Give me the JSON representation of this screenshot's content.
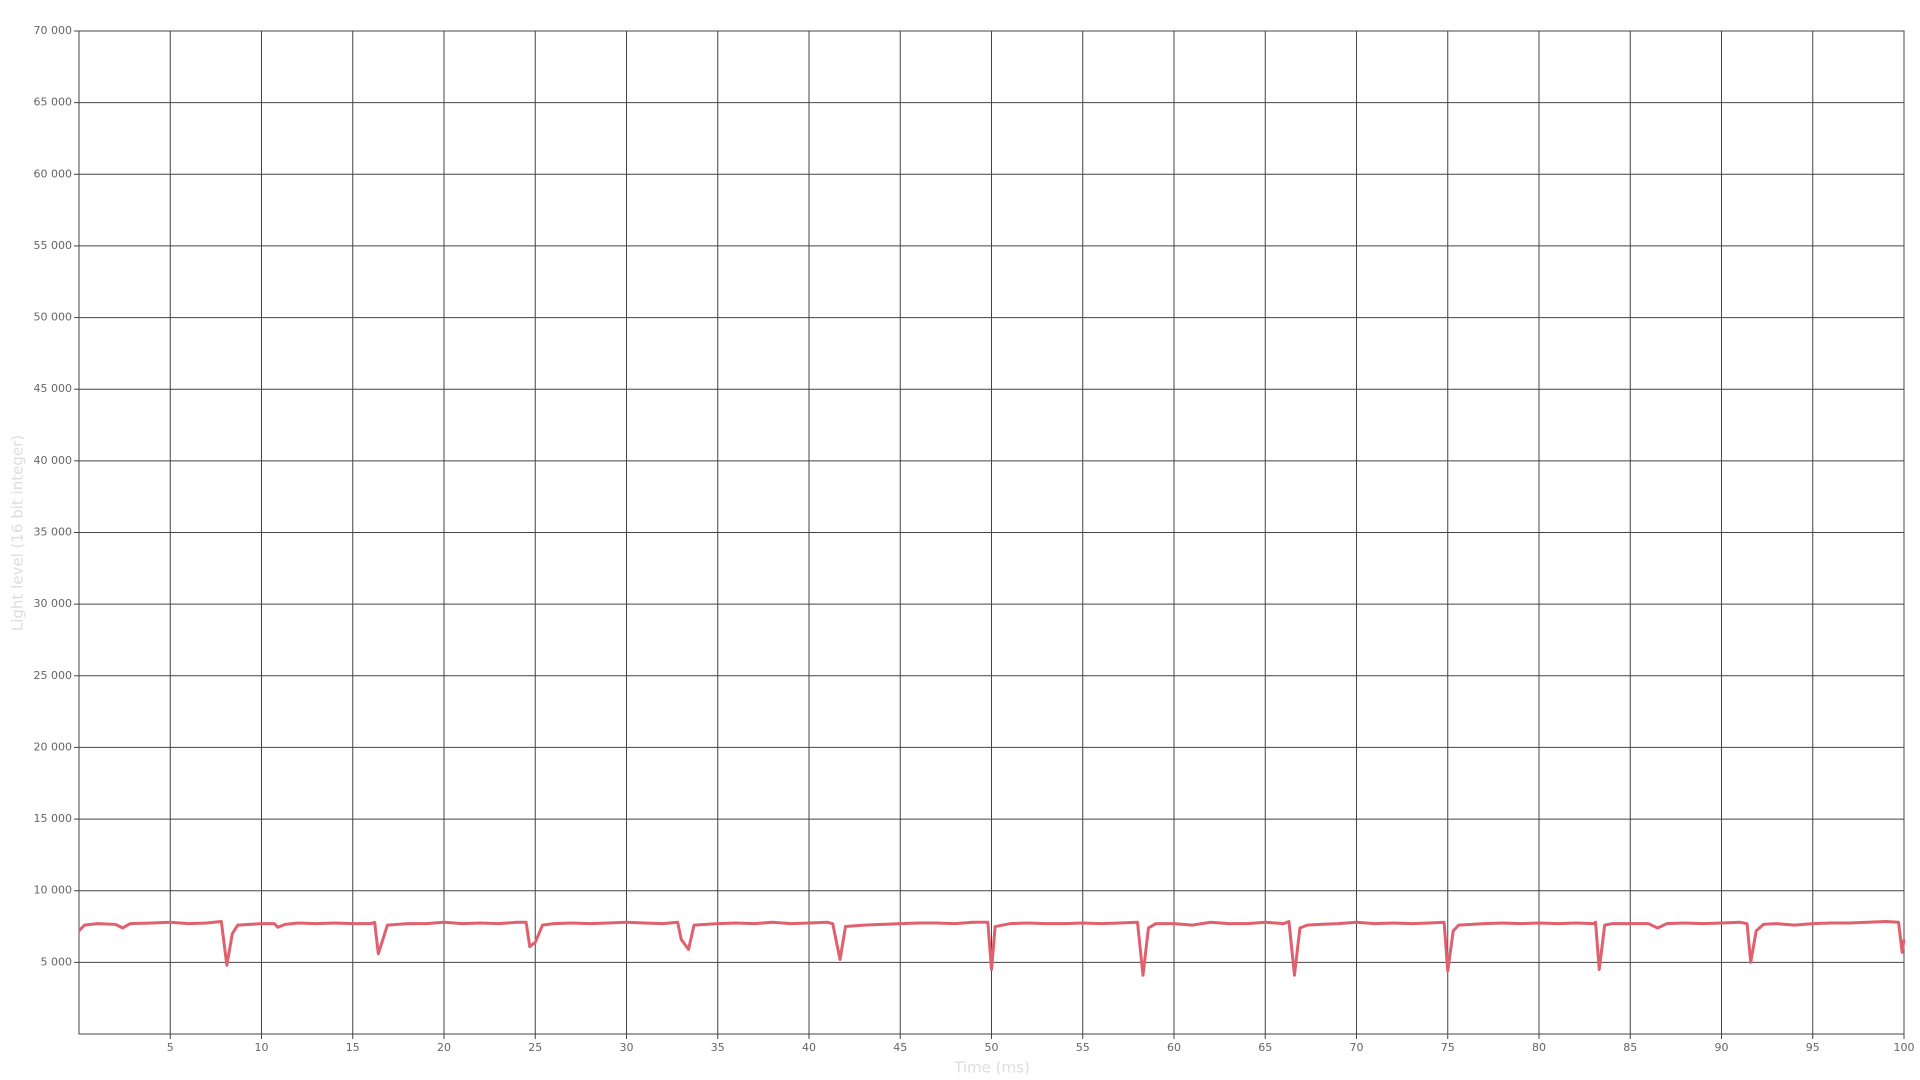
{
  "chart_data": {
    "type": "line",
    "xlabel": "Time (ms)",
    "ylabel": "Light level (16 bit integer)",
    "color": "#e0606e",
    "grid": true,
    "xlim": [
      0,
      100
    ],
    "ylim": [
      0,
      70000
    ],
    "xticks": [
      5,
      10,
      15,
      20,
      25,
      30,
      35,
      40,
      45,
      50,
      55,
      60,
      65,
      70,
      75,
      80,
      85,
      90,
      95,
      100
    ],
    "yticks": [
      {
        "value": 5000,
        "label": "5 000"
      },
      {
        "value": 10000,
        "label": "10 000"
      },
      {
        "value": 15000,
        "label": "15 000"
      },
      {
        "value": 20000,
        "label": "20 000"
      },
      {
        "value": 25000,
        "label": "25 000"
      },
      {
        "value": 30000,
        "label": "30 000"
      },
      {
        "value": 35000,
        "label": "35 000"
      },
      {
        "value": 40000,
        "label": "40 000"
      },
      {
        "value": 45000,
        "label": "45 000"
      },
      {
        "value": 50000,
        "label": "50 000"
      },
      {
        "value": 55000,
        "label": "55 000"
      },
      {
        "value": 60000,
        "label": "60 000"
      },
      {
        "value": 65000,
        "label": "65 000"
      },
      {
        "value": 70000,
        "label": "70 000"
      }
    ],
    "x": [
      0,
      0.3,
      1,
      2,
      2.4,
      2.8,
      4,
      5,
      6,
      7,
      7.8,
      8.1,
      8.4,
      8.7,
      10,
      10.7,
      10.9,
      11.3,
      12,
      13,
      14,
      15,
      16,
      16.2,
      16.4,
      16.9,
      18,
      19,
      20,
      21,
      22,
      23,
      24,
      24.5,
      24.7,
      25,
      25.4,
      26,
      27,
      28,
      29,
      30,
      31,
      32,
      32.8,
      33.0,
      33.4,
      33.7,
      35,
      36,
      37,
      38,
      39,
      40,
      41,
      41.3,
      41.7,
      42,
      43,
      44,
      45,
      46,
      47,
      48,
      49,
      49.8,
      50,
      50.2,
      51,
      52,
      53,
      54,
      55,
      56,
      57,
      58,
      58.3,
      58.6,
      59,
      60,
      61,
      62,
      63,
      64,
      65,
      66,
      66.3,
      66.6,
      66.9,
      67.3,
      68,
      69,
      70,
      71,
      72,
      73,
      74,
      74.8,
      75,
      75.3,
      75.6,
      77,
      78,
      79,
      80,
      81,
      82,
      83,
      83.1,
      83.3,
      83.6,
      84,
      86,
      86.5,
      87,
      88,
      89,
      90,
      91,
      91.4,
      91.6,
      91.9,
      92.3,
      93,
      94,
      95,
      96,
      97,
      98,
      99,
      99.7,
      99.9,
      100
    ],
    "values": [
      7200,
      7600,
      7700,
      7650,
      7400,
      7700,
      7750,
      7800,
      7700,
      7750,
      7850,
      4800,
      7000,
      7600,
      7700,
      7700,
      7450,
      7650,
      7750,
      7700,
      7750,
      7700,
      7700,
      7800,
      5600,
      7600,
      7700,
      7700,
      7800,
      7700,
      7750,
      7700,
      7800,
      7800,
      6100,
      6400,
      7600,
      7700,
      7750,
      7700,
      7750,
      7800,
      7750,
      7700,
      7800,
      6600,
      5900,
      7600,
      7700,
      7750,
      7700,
      7800,
      7700,
      7750,
      7800,
      7700,
      5200,
      7500,
      7600,
      7650,
      7700,
      7750,
      7750,
      7700,
      7800,
      7800,
      4500,
      7500,
      7700,
      7750,
      7700,
      7700,
      7750,
      7700,
      7750,
      7800,
      4100,
      7400,
      7700,
      7700,
      7600,
      7800,
      7700,
      7700,
      7800,
      7700,
      7850,
      4100,
      7400,
      7600,
      7650,
      7700,
      7800,
      7700,
      7750,
      7700,
      7750,
      7800,
      4400,
      7200,
      7600,
      7700,
      7750,
      7700,
      7750,
      7700,
      7750,
      7700,
      7800,
      4500,
      7600,
      7700,
      7700,
      7400,
      7700,
      7750,
      7700,
      7750,
      7800,
      7700,
      5000,
      7200,
      7650,
      7700,
      7600,
      7700,
      7750,
      7750,
      7800,
      7850,
      7800,
      5700,
      6600
    ]
  }
}
